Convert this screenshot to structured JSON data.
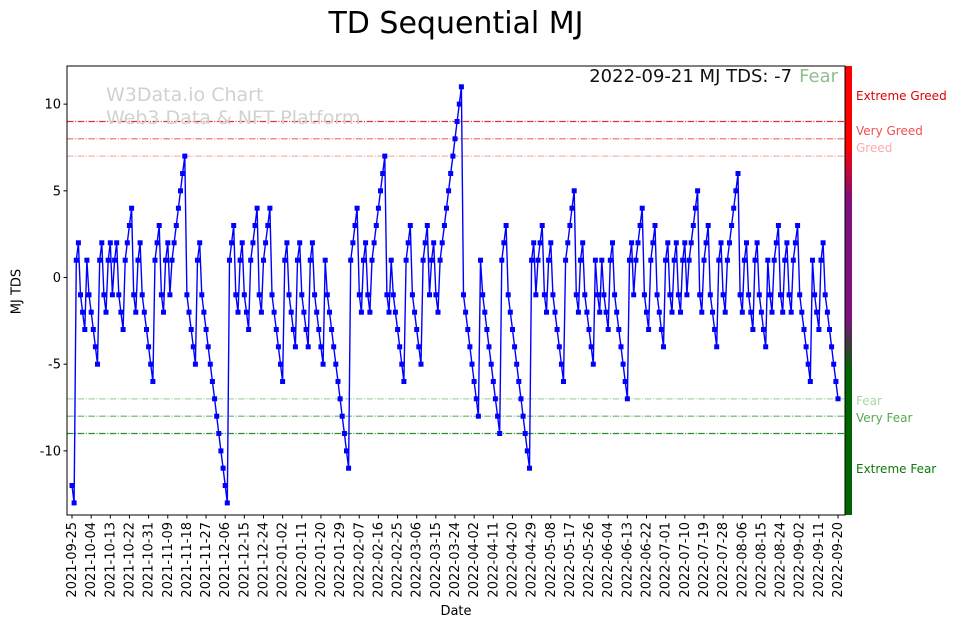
{
  "title": "TD Sequential MJ",
  "watermark": {
    "line1": "W3Data.io Chart",
    "line2": "Web3 Data & NFT Platform"
  },
  "annotation": {
    "text": "2022-09-21 MJ TDS: -7",
    "classification": "Fear",
    "classification_color": "#8fbe8f"
  },
  "axes": {
    "x_label": "Date",
    "y_label": "MJ TDS"
  },
  "chart_data": {
    "type": "line",
    "series_name": "MJ TDS",
    "line_color": "#0000ff",
    "marker": "square",
    "ylim": [
      -13.7,
      12.2
    ],
    "y_ticks": [
      10,
      5,
      0,
      -5,
      -10
    ],
    "x_tick_step": 9,
    "x_tick_labels": [
      "2021-09-25",
      "2021-10-04",
      "2021-10-13",
      "2021-10-22",
      "2021-10-31",
      "2021-11-09",
      "2021-11-18",
      "2021-11-27",
      "2021-12-06",
      "2021-12-15",
      "2021-12-24",
      "2022-01-02",
      "2022-01-11",
      "2022-01-20",
      "2022-01-29",
      "2022-02-07",
      "2022-02-16",
      "2022-02-25",
      "2022-03-06",
      "2022-03-15",
      "2022-03-24",
      "2022-04-02",
      "2022-04-11",
      "2022-04-20",
      "2022-04-29",
      "2022-05-08",
      "2022-05-17",
      "2022-05-26",
      "2022-06-04",
      "2022-06-13",
      "2022-06-22",
      "2022-07-01",
      "2022-07-10",
      "2022-07-19",
      "2022-07-28",
      "2022-08-06",
      "2022-08-15",
      "2022-08-24",
      "2022-09-02",
      "2022-09-11",
      "2022-09-20"
    ],
    "values": [
      -12,
      -13,
      1,
      2,
      -1,
      -2,
      -3,
      1,
      -1,
      -2,
      -3,
      -4,
      -5,
      1,
      2,
      -1,
      -2,
      1,
      2,
      -1,
      1,
      2,
      -1,
      -2,
      -3,
      1,
      2,
      3,
      4,
      -1,
      -2,
      1,
      2,
      -1,
      -2,
      -3,
      -4,
      -5,
      -6,
      1,
      2,
      3,
      -1,
      -2,
      1,
      2,
      -1,
      1,
      2,
      3,
      4,
      5,
      6,
      7,
      -1,
      -2,
      -3,
      -4,
      -5,
      1,
      2,
      -1,
      -2,
      -3,
      -4,
      -5,
      -6,
      -7,
      -8,
      -9,
      -10,
      -11,
      -12,
      -13,
      1,
      2,
      3,
      -1,
      -2,
      1,
      2,
      -1,
      -2,
      -3,
      1,
      2,
      3,
      4,
      -1,
      -2,
      1,
      2,
      3,
      4,
      -1,
      -2,
      -3,
      -4,
      -5,
      -6,
      1,
      2,
      -1,
      -2,
      -3,
      -4,
      1,
      2,
      -1,
      -2,
      -3,
      -4,
      1,
      2,
      -1,
      -2,
      -3,
      -4,
      -5,
      1,
      -1,
      -2,
      -3,
      -4,
      -5,
      -6,
      -7,
      -8,
      -9,
      -10,
      -11,
      1,
      2,
      3,
      4,
      -1,
      -2,
      1,
      2,
      -1,
      -2,
      1,
      2,
      3,
      4,
      5,
      6,
      7,
      -1,
      -2,
      1,
      -1,
      -2,
      -3,
      -4,
      -5,
      -6,
      1,
      2,
      3,
      -1,
      -2,
      -3,
      -4,
      -5,
      1,
      2,
      3,
      -1,
      1,
      2,
      -1,
      -2,
      1,
      2,
      3,
      4,
      5,
      6,
      7,
      8,
      9,
      10,
      11,
      -1,
      -2,
      -3,
      -4,
      -5,
      -6,
      -7,
      -8,
      1,
      -1,
      -2,
      -3,
      -4,
      -5,
      -6,
      -7,
      -8,
      -9,
      1,
      2,
      3,
      -1,
      -2,
      -3,
      -4,
      -5,
      -6,
      -7,
      -8,
      -9,
      -10,
      -11,
      1,
      2,
      -1,
      1,
      2,
      3,
      -1,
      -2,
      1,
      2,
      -1,
      -2,
      -3,
      -4,
      -5,
      -6,
      1,
      2,
      3,
      4,
      5,
      -1,
      -2,
      1,
      2,
      -1,
      -2,
      -3,
      -4,
      -5,
      1,
      -1,
      -2,
      1,
      -1,
      -2,
      -3,
      1,
      2,
      -1,
      -2,
      -3,
      -4,
      -5,
      -6,
      -7,
      1,
      2,
      -1,
      1,
      2,
      3,
      4,
      -1,
      -2,
      -3,
      1,
      2,
      3,
      -1,
      -2,
      -3,
      -4,
      1,
      2,
      -1,
      -2,
      1,
      2,
      -1,
      -2,
      1,
      2,
      -1,
      1,
      2,
      3,
      4,
      5,
      -1,
      -2,
      1,
      2,
      3,
      -1,
      -2,
      -3,
      -4,
      1,
      2,
      -1,
      -2,
      1,
      2,
      3,
      4,
      5,
      6,
      -1,
      -2,
      1,
      2,
      -1,
      -2,
      -3,
      1,
      2,
      -1,
      -2,
      -3,
      -4,
      1,
      -1,
      -2,
      1,
      2,
      3,
      -1,
      -2,
      1,
      2,
      -1,
      -2,
      1,
      2,
      3,
      -1,
      -2,
      -3,
      -4,
      -5,
      -6,
      1,
      -1,
      -2,
      -3,
      1,
      2,
      -1,
      -2,
      -3,
      -4,
      -5,
      -6,
      -7
    ],
    "threshold_lines": [
      {
        "value": 9,
        "color": "#e03030"
      },
      {
        "value": 8,
        "color": "#ef6a6a"
      },
      {
        "value": 7,
        "color": "#ffafaf"
      },
      {
        "value": -7,
        "color": "#aad4aa"
      },
      {
        "value": -8,
        "color": "#66b266"
      },
      {
        "value": -9,
        "color": "#2e8b2e"
      }
    ],
    "zone_labels": [
      {
        "text": "Extreme Greed",
        "color": "#e00000"
      },
      {
        "text": "Very Greed",
        "color": "#f05050"
      },
      {
        "text": "Greed",
        "color": "#ffaaaa"
      },
      {
        "text": "Fear",
        "color": "#aad4aa"
      },
      {
        "text": "Very Fear",
        "color": "#55a855"
      },
      {
        "text": "Extreme Fear",
        "color": "#0b7a0b"
      }
    ],
    "colorbar": {
      "top_color": "#ff0000",
      "mid_color": "#7d107d",
      "bottom_color": "#006400"
    }
  }
}
